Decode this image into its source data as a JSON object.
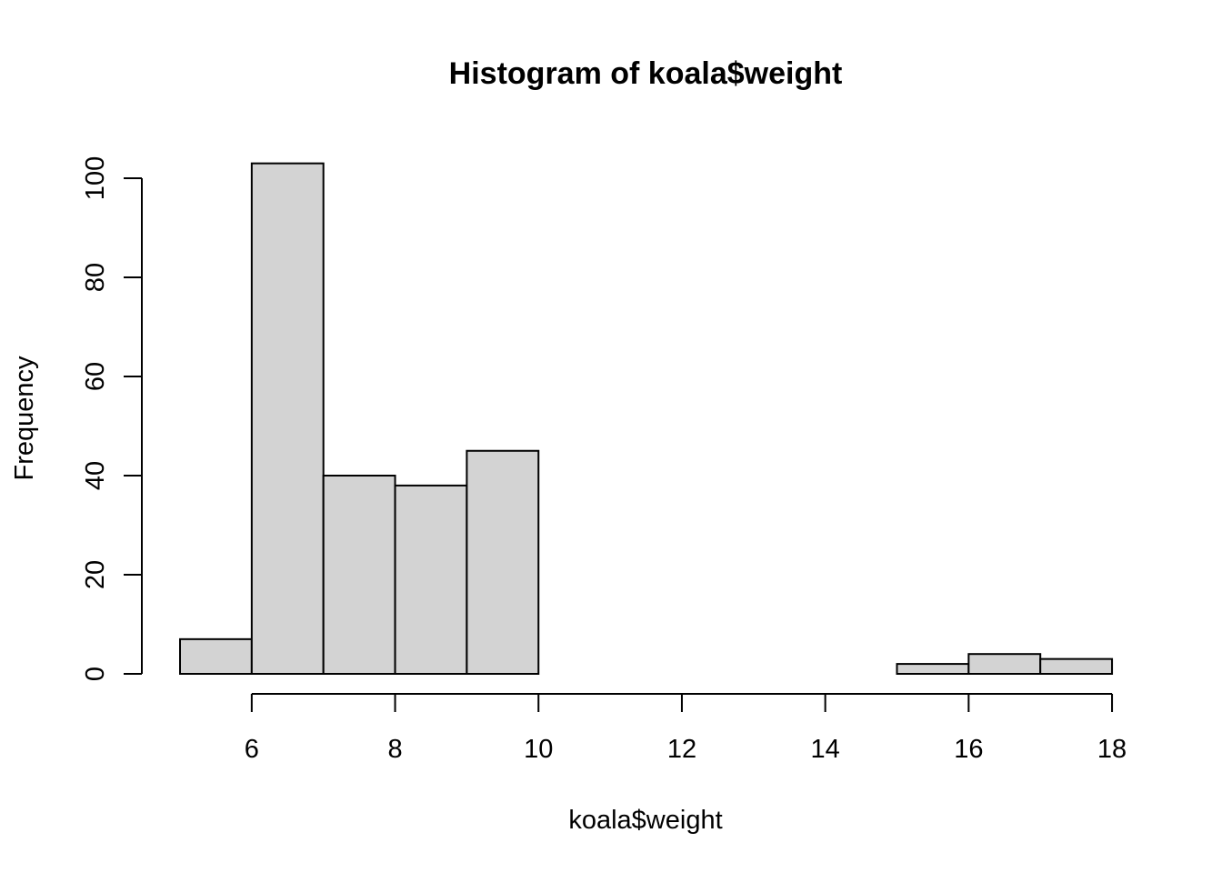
{
  "chart_data": {
    "type": "bar",
    "title": "Histogram of koala$weight",
    "xlabel": "koala$weight",
    "ylabel": "Frequency",
    "bins": [
      {
        "start": 5,
        "end": 6,
        "count": 7
      },
      {
        "start": 6,
        "end": 7,
        "count": 103
      },
      {
        "start": 7,
        "end": 8,
        "count": 40
      },
      {
        "start": 8,
        "end": 9,
        "count": 38
      },
      {
        "start": 9,
        "end": 10,
        "count": 45
      },
      {
        "start": 10,
        "end": 11,
        "count": 0
      },
      {
        "start": 11,
        "end": 12,
        "count": 0
      },
      {
        "start": 12,
        "end": 13,
        "count": 0
      },
      {
        "start": 13,
        "end": 14,
        "count": 0
      },
      {
        "start": 14,
        "end": 15,
        "count": 0
      },
      {
        "start": 15,
        "end": 16,
        "count": 2
      },
      {
        "start": 16,
        "end": 17,
        "count": 4
      },
      {
        "start": 17,
        "end": 18,
        "count": 3
      }
    ],
    "x_ticks": [
      "6",
      "8",
      "10",
      "12",
      "14",
      "16",
      "18"
    ],
    "x_tick_values": [
      6,
      8,
      10,
      12,
      14,
      16,
      18
    ],
    "y_ticks": [
      "0",
      "20",
      "40",
      "60",
      "80",
      "100"
    ],
    "y_tick_values": [
      0,
      20,
      40,
      60,
      80,
      100
    ],
    "xlim": [
      5,
      18
    ],
    "ylim": [
      0,
      103
    ],
    "bar_fill": "#d3d3d3",
    "bar_stroke": "#000000",
    "grid": false,
    "legend": "none"
  }
}
